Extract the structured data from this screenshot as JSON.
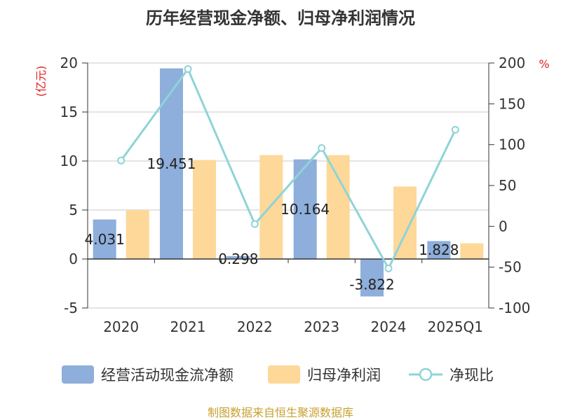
{
  "chart_data": {
    "type": "bar",
    "title": "历年经营现金净额、归母净利润情况",
    "categories": [
      "2020",
      "2021",
      "2022",
      "2023",
      "2024",
      "2025Q1"
    ],
    "series": [
      {
        "name": "经营活动现金流净额",
        "type": "bar",
        "axis": "left",
        "color": "#8eaedb",
        "values": [
          4.031,
          19.451,
          0.298,
          10.164,
          -3.822,
          1.828
        ],
        "labels": [
          "4.031",
          "19.451",
          "0.298",
          "10.164",
          "-3.822",
          "1.828"
        ]
      },
      {
        "name": "归母净利润",
        "type": "bar",
        "axis": "left",
        "color": "#fdd899",
        "values": [
          5.0,
          10.1,
          10.6,
          10.6,
          7.4,
          1.6
        ]
      },
      {
        "name": "净现比",
        "type": "line",
        "axis": "right",
        "color": "#8dd4d8",
        "values": [
          80.6,
          192.6,
          2.8,
          95.9,
          -51.6,
          118.3
        ]
      }
    ],
    "y_left": {
      "unit": "(亿元)",
      "min": -5,
      "max": 20,
      "ticks": [
        "-5",
        "0",
        "5",
        "10",
        "15",
        "20"
      ]
    },
    "y_right": {
      "unit": "%",
      "min": -100,
      "max": 200,
      "ticks": [
        "-100",
        "-50",
        "0",
        "50",
        "100",
        "150",
        "200"
      ]
    },
    "grid": true,
    "legend": "bottom",
    "source": "制图数据来自恒生聚源数据库"
  }
}
